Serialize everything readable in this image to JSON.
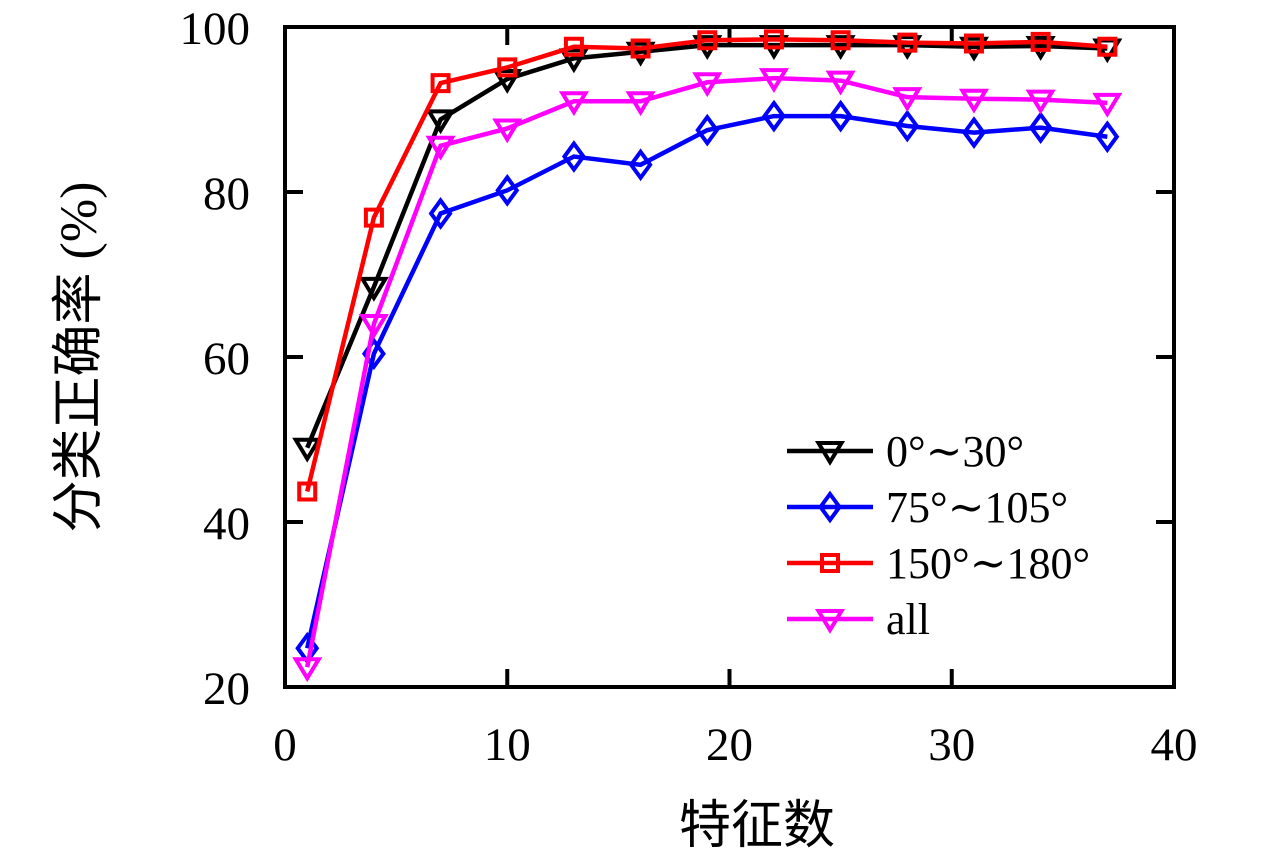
{
  "chart_data": {
    "type": "line",
    "title": "",
    "xlabel": "特征数",
    "ylabel": "分类正确率 (%)",
    "xlim": [
      0,
      40
    ],
    "ylim": [
      20,
      100
    ],
    "xticks": [
      0,
      10,
      20,
      30,
      40
    ],
    "yticks": [
      20,
      40,
      60,
      80,
      100
    ],
    "grid": false,
    "legend_position": "inside-lower-right",
    "axis_color": "#000000",
    "x": [
      1,
      4,
      7,
      10,
      13,
      16,
      19,
      22,
      25,
      28,
      31,
      34,
      37
    ],
    "series": [
      {
        "name": "0°∼30°",
        "color": "#000000",
        "marker": "triangle-down",
        "values": [
          49.0,
          68.5,
          88.8,
          93.7,
          96.2,
          97.0,
          97.8,
          97.8,
          97.8,
          97.8,
          97.6,
          97.7,
          97.4
        ]
      },
      {
        "name": "75°∼105°",
        "color": "#0000ff",
        "marker": "diamond",
        "values": [
          24.7,
          60.4,
          77.4,
          80.2,
          84.3,
          83.3,
          87.5,
          89.2,
          89.2,
          88.0,
          87.2,
          87.8,
          86.7
        ]
      },
      {
        "name": "150°∼180°",
        "color": "#ff0000",
        "marker": "square",
        "values": [
          43.7,
          76.9,
          93.2,
          95.1,
          97.6,
          97.4,
          98.4,
          98.5,
          98.4,
          98.1,
          98.0,
          98.2,
          97.6
        ]
      },
      {
        "name": "all",
        "color": "#ff00ff",
        "marker": "triangle-down",
        "values": [
          22.4,
          64.0,
          85.6,
          87.7,
          91.0,
          91.0,
          93.3,
          93.8,
          93.5,
          91.5,
          91.3,
          91.2,
          90.8
        ]
      }
    ]
  }
}
